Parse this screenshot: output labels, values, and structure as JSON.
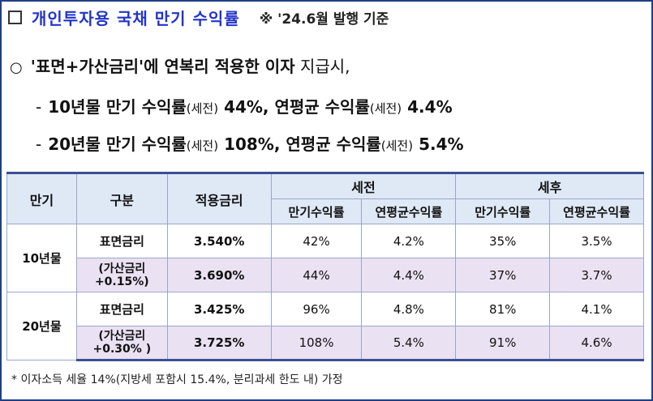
{
  "header": {
    "title": "개인투자용 국채 만기 수익률",
    "note": "※ '24.6월 발행 기준"
  },
  "summary": {
    "bullet_symbol": "○",
    "intro_bold": "'표면+가산금리'에 연복리 적용한 이자",
    "intro_normal": "지급시,",
    "line1": {
      "dash": "-",
      "a": "10년물 만기 수익률",
      "a_note": "(세전)",
      "b": "44%, 연평균 수익률",
      "b_note": "(세전)",
      "c": "4.4%"
    },
    "line2": {
      "dash": "-",
      "a": "20년물 만기 수익률",
      "a_note": "(세전)",
      "b": "108%, 연평균 수익률",
      "b_note": "(세전)",
      "c": "5.4%"
    }
  },
  "table": {
    "headers": {
      "maturity": "만기",
      "type": "구분",
      "rate": "적용금리",
      "pretax": "세전",
      "posttax": "세후",
      "maturity_yield": "만기수익률",
      "annual_yield": "연평균수익률"
    },
    "groups": [
      {
        "maturity": "10년물",
        "rows": [
          {
            "type": "표면금리",
            "rate": "3.540%",
            "pre_maturity": "42%",
            "pre_annual": "4.2%",
            "post_maturity": "35%",
            "post_annual": "3.5%"
          },
          {
            "type_l1": "(가산금리",
            "type_l2": "+0.15%)",
            "rate": "3.690%",
            "pre_maturity": "44%",
            "pre_annual": "4.4%",
            "post_maturity": "37%",
            "post_annual": "3.7%"
          }
        ]
      },
      {
        "maturity": "20년물",
        "rows": [
          {
            "type": "표면금리",
            "rate": "3.425%",
            "pre_maturity": "96%",
            "pre_annual": "4.8%",
            "post_maturity": "81%",
            "post_annual": "4.1%"
          },
          {
            "type_l1": "(가산금리",
            "type_l2": "+0.30% )",
            "rate": "3.725%",
            "pre_maturity": "108%",
            "pre_annual": "5.4%",
            "post_maturity": "91%",
            "post_annual": "4.6%"
          }
        ]
      }
    ]
  },
  "footnote": "* 이자소득 세율 14%(지방세 포함시 15.4%, 분리과세 한도 내) 가정",
  "colors": {
    "title": "#2233cc",
    "header_bg": "#dfe8f5",
    "highlight_bg": "#eae1f2",
    "border": "#1f3f86"
  }
}
